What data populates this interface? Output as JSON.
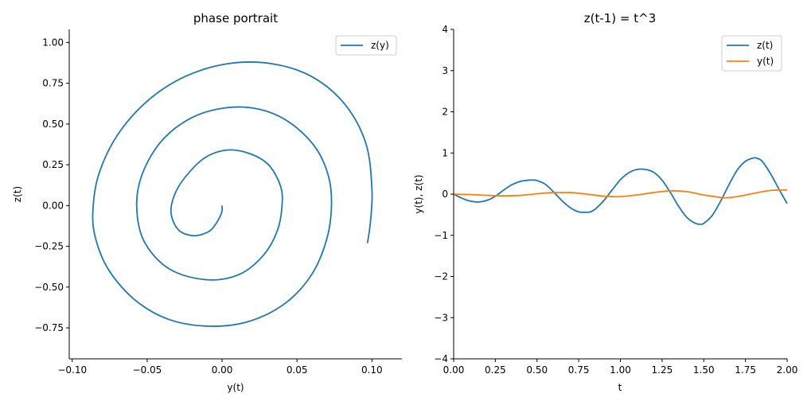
{
  "chart_data": [
    {
      "type": "line",
      "title": "phase portrait",
      "xlabel": "y(t)",
      "ylabel": "z(t)",
      "xlim": [
        -0.102,
        0.12
      ],
      "ylim": [
        -0.94,
        1.08
      ],
      "xticks": [
        -0.1,
        -0.05,
        0.0,
        0.05,
        0.1
      ],
      "xtick_labels": [
        "−0.10",
        "−0.05",
        "0.00",
        "0.05",
        "0.10"
      ],
      "yticks": [
        -0.75,
        -0.5,
        -0.25,
        0.0,
        0.25,
        0.5,
        0.75,
        1.0
      ],
      "ytick_labels": [
        "−0.75",
        "−0.50",
        "−0.25",
        "0.00",
        "0.25",
        "0.50",
        "0.75",
        "1.00"
      ],
      "grid": false,
      "legend_position": "top-right",
      "series": [
        {
          "name": "z(y)",
          "color": "#1f77b4",
          "x_of": "y(t)",
          "y_of": "z(t)",
          "points": [
            [
              0.0,
              0.0
            ],
            [
              0.0,
              -0.03
            ],
            [
              -0.001,
              -0.06
            ],
            [
              -0.004,
              -0.11
            ],
            [
              -0.009,
              -0.16
            ],
            [
              -0.019,
              -0.185
            ],
            [
              -0.029,
              -0.15
            ],
            [
              -0.034,
              -0.05
            ],
            [
              -0.032,
              0.06
            ],
            [
              -0.025,
              0.17
            ],
            [
              -0.012,
              0.29
            ],
            [
              0.003,
              0.34
            ],
            [
              0.018,
              0.32
            ],
            [
              0.031,
              0.25
            ],
            [
              0.039,
              0.12
            ],
            [
              0.04,
              0.0
            ],
            [
              0.037,
              -0.15
            ],
            [
              0.028,
              -0.3
            ],
            [
              0.012,
              -0.42
            ],
            [
              -0.01,
              -0.455
            ],
            [
              -0.035,
              -0.39
            ],
            [
              -0.052,
              -0.22
            ],
            [
              -0.057,
              0.0
            ],
            [
              -0.053,
              0.2
            ],
            [
              -0.04,
              0.4
            ],
            [
              -0.02,
              0.54
            ],
            [
              0.003,
              0.6
            ],
            [
              0.025,
              0.59
            ],
            [
              0.045,
              0.51
            ],
            [
              0.062,
              0.36
            ],
            [
              0.071,
              0.18
            ],
            [
              0.073,
              0.0
            ],
            [
              0.07,
              -0.2
            ],
            [
              0.06,
              -0.42
            ],
            [
              0.042,
              -0.6
            ],
            [
              0.018,
              -0.71
            ],
            [
              -0.008,
              -0.74
            ],
            [
              -0.035,
              -0.7
            ],
            [
              -0.058,
              -0.58
            ],
            [
              -0.076,
              -0.39
            ],
            [
              -0.085,
              -0.18
            ],
            [
              -0.086,
              0.0
            ],
            [
              -0.082,
              0.2
            ],
            [
              -0.07,
              0.43
            ],
            [
              -0.05,
              0.64
            ],
            [
              -0.025,
              0.79
            ],
            [
              0.004,
              0.87
            ],
            [
              0.033,
              0.87
            ],
            [
              0.06,
              0.79
            ],
            [
              0.082,
              0.62
            ],
            [
              0.096,
              0.38
            ],
            [
              0.1,
              0.1
            ],
            [
              0.099,
              -0.1
            ],
            [
              0.097,
              -0.23
            ]
          ]
        }
      ]
    },
    {
      "type": "line",
      "title": "z(t-1) = t^3",
      "xlabel": "t",
      "ylabel": "y(t), z(t)",
      "xlim": [
        0.0,
        2.0
      ],
      "ylim": [
        -4,
        4
      ],
      "xticks": [
        0.0,
        0.25,
        0.5,
        0.75,
        1.0,
        1.25,
        1.5,
        1.75,
        2.0
      ],
      "xtick_labels": [
        "0.00",
        "0.25",
        "0.50",
        "0.75",
        "1.00",
        "1.25",
        "1.50",
        "1.75",
        "2.00"
      ],
      "yticks": [
        -4,
        -3,
        -2,
        -1,
        0,
        1,
        2,
        3,
        4
      ],
      "ytick_labels": [
        "−4",
        "−3",
        "−2",
        "−1",
        "0",
        "1",
        "2",
        "3",
        "4"
      ],
      "grid": false,
      "legend_position": "top-right",
      "series": [
        {
          "name": "z(t)",
          "color": "#1f77b4",
          "x": [
            0.0,
            0.05,
            0.1,
            0.15,
            0.2,
            0.25,
            0.3,
            0.35,
            0.4,
            0.45,
            0.48,
            0.5,
            0.55,
            0.6,
            0.65,
            0.7,
            0.75,
            0.8,
            0.82,
            0.85,
            0.9,
            0.95,
            1.0,
            1.05,
            1.1,
            1.15,
            1.2,
            1.25,
            1.3,
            1.35,
            1.4,
            1.45,
            1.48,
            1.5,
            1.55,
            1.6,
            1.65,
            1.7,
            1.75,
            1.8,
            1.82,
            1.85,
            1.9,
            1.95,
            2.0
          ],
          "y": [
            0.0,
            -0.1,
            -0.17,
            -0.19,
            -0.15,
            -0.05,
            0.1,
            0.23,
            0.31,
            0.34,
            0.34,
            0.33,
            0.24,
            0.05,
            -0.16,
            -0.33,
            -0.43,
            -0.44,
            -0.43,
            -0.36,
            -0.16,
            0.1,
            0.35,
            0.52,
            0.6,
            0.6,
            0.53,
            0.34,
            0.04,
            -0.3,
            -0.57,
            -0.71,
            -0.73,
            -0.71,
            -0.52,
            -0.18,
            0.22,
            0.58,
            0.8,
            0.88,
            0.87,
            0.8,
            0.5,
            0.13,
            -0.23
          ]
        },
        {
          "name": "y(t)",
          "color": "#ff7f0e",
          "x": [
            0.0,
            0.1,
            0.2,
            0.3,
            0.4,
            0.5,
            0.6,
            0.65,
            0.7,
            0.8,
            0.9,
            0.97,
            1.0,
            1.1,
            1.2,
            1.3,
            1.4,
            1.5,
            1.6,
            1.63,
            1.7,
            1.8,
            1.9,
            2.0
          ],
          "y": [
            0.0,
            -0.01,
            -0.03,
            -0.04,
            -0.03,
            0.01,
            0.04,
            0.04,
            0.04,
            0.0,
            -0.05,
            -0.06,
            -0.06,
            -0.02,
            0.04,
            0.08,
            0.06,
            -0.02,
            -0.08,
            -0.09,
            -0.06,
            0.02,
            0.09,
            0.1
          ]
        }
      ]
    }
  ]
}
